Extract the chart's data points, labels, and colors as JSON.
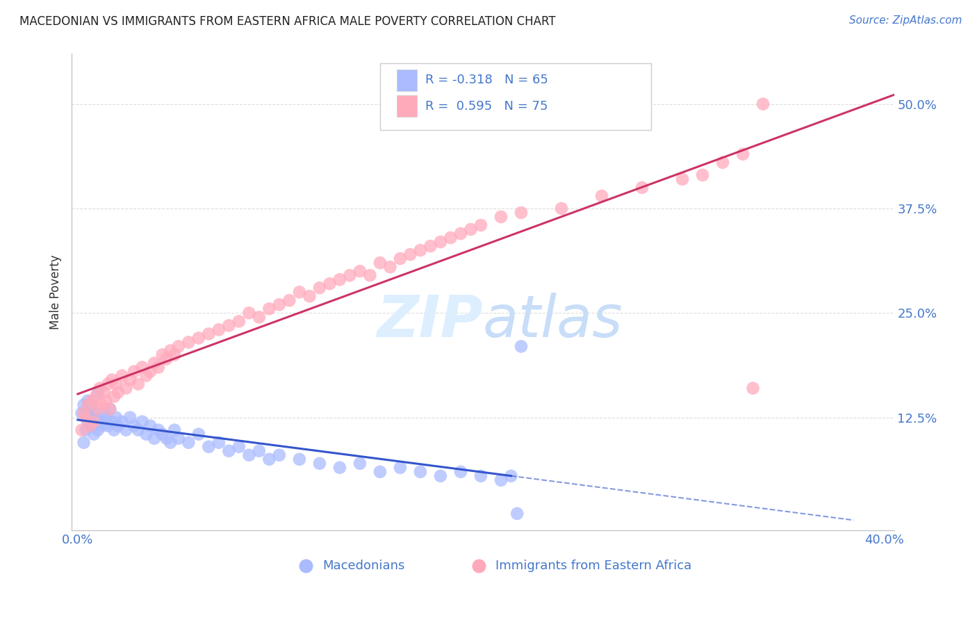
{
  "title": "MACEDONIAN VS IMMIGRANTS FROM EASTERN AFRICA MALE POVERTY CORRELATION CHART",
  "source": "Source: ZipAtlas.com",
  "ylabel": "Male Poverty",
  "ytick_labels": [
    "50.0%",
    "37.5%",
    "25.0%",
    "12.5%"
  ],
  "ytick_values": [
    0.5,
    0.375,
    0.25,
    0.125
  ],
  "xlim": [
    -0.003,
    0.405
  ],
  "ylim": [
    -0.01,
    0.56
  ],
  "blue_color": "#aabbff",
  "pink_color": "#ffaabb",
  "blue_line_color": "#3355cc",
  "pink_line_color": "#cc3366",
  "background_color": "#ffffff",
  "grid_color": "#dddddd",
  "title_color": "#222222",
  "axis_label_color": "#4477cc",
  "tick_label_color": "#4477cc",
  "watermark_color": "#ddeeff",
  "legend_box_color": "#f5f5f5",
  "legend_border_color": "#cccccc"
}
